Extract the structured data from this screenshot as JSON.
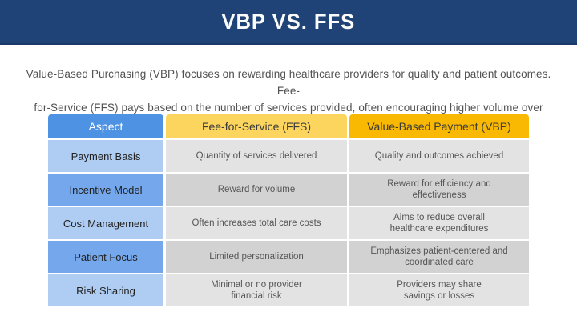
{
  "title": "VBP VS. FFS",
  "intro": "Value-Based Purchasing (VBP) focuses on rewarding healthcare providers for quality and patient outcomes. Fee-\nfor-Service (FFS) pays based on the number of services provided, often encouraging higher volume over value.",
  "colors": {
    "bar": "#1F4377",
    "bar_edge": "#19396A",
    "aspect": "#4E92E4",
    "ffs": "#FCD55F",
    "vbp": "#F9B801",
    "label_light": "#AFCCF2",
    "label_mid": "#74A7EB",
    "cell_light": "#E3E3E3",
    "cell_mid": "#D2D2D2"
  },
  "table": {
    "columns": [
      "Aspect",
      "Fee-for-Service (FFS)",
      "Value-Based Payment (VBP)"
    ],
    "rows": [
      {
        "aspect": "Payment Basis",
        "ffs": "Quantity of services delivered",
        "vbp": "Quality and outcomes achieved"
      },
      {
        "aspect": "Incentive Model",
        "ffs": "Reward for volume",
        "vbp": "Reward for efficiency and\neffectiveness"
      },
      {
        "aspect": "Cost Management",
        "ffs": "Often increases total care costs",
        "vbp": "Aims to reduce overall\nhealthcare expenditures"
      },
      {
        "aspect": "Patient Focus",
        "ffs": "Limited personalization",
        "vbp": "Emphasizes patient-centered and\ncoordinated care"
      },
      {
        "aspect": "Risk Sharing",
        "ffs": "Minimal or no provider\nfinancial risk",
        "vbp": "Providers may share\nsavings or losses"
      }
    ]
  }
}
